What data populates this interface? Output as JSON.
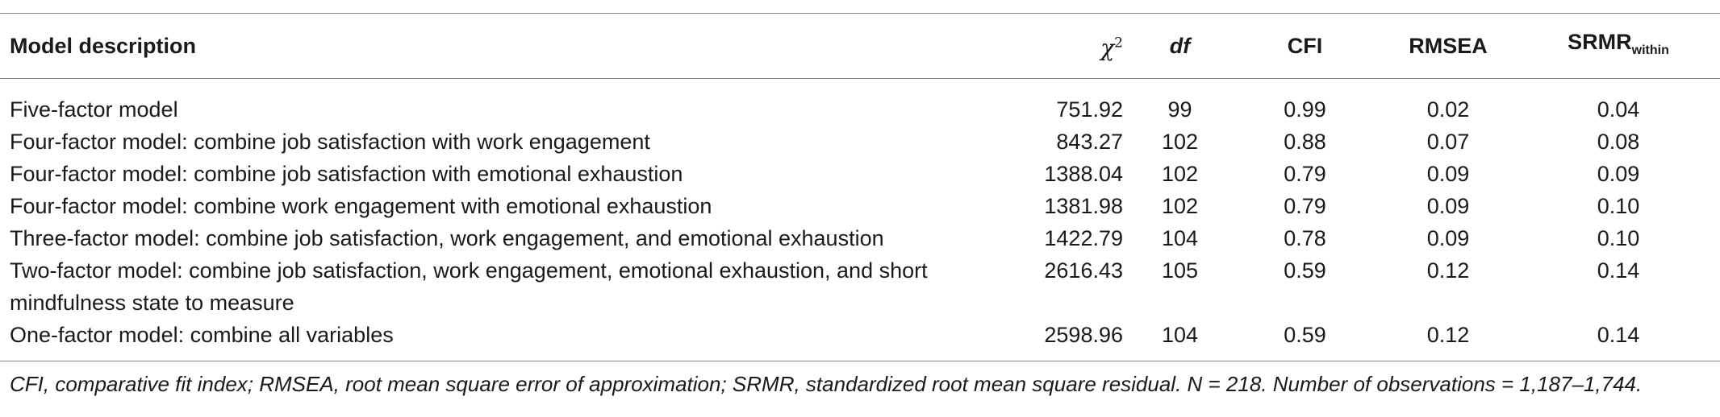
{
  "table": {
    "headers": {
      "model": "Model description",
      "chi_symbol": "χ",
      "chi_sup": "2",
      "df": "df",
      "cfi": "CFI",
      "rmsea": "RMSEA",
      "srmr_base": "SRMR",
      "srmr_sub": "within"
    },
    "rows": [
      {
        "model": "Five-factor model",
        "chi2": "751.92",
        "df": "99",
        "cfi": "0.99",
        "rmsea": "0.02",
        "srmr": "0.04"
      },
      {
        "model": "Four-factor model: combine job satisfaction with work engagement",
        "chi2": "843.27",
        "df": "102",
        "cfi": "0.88",
        "rmsea": "0.07",
        "srmr": "0.08"
      },
      {
        "model": "Four-factor model: combine job satisfaction with emotional exhaustion",
        "chi2": "1388.04",
        "df": "102",
        "cfi": "0.79",
        "rmsea": "0.09",
        "srmr": "0.09"
      },
      {
        "model": "Four-factor model: combine work engagement with emotional exhaustion",
        "chi2": "1381.98",
        "df": "102",
        "cfi": "0.79",
        "rmsea": "0.09",
        "srmr": "0.10"
      },
      {
        "model": "Three-factor model: combine job satisfaction, work engagement, and emotional exhaustion",
        "chi2": "1422.79",
        "df": "104",
        "cfi": "0.78",
        "rmsea": "0.09",
        "srmr": "0.10"
      },
      {
        "model": "Two-factor model: combine job satisfaction, work engagement, emotional exhaustion, and short mindfulness state to measure",
        "chi2": "2616.43",
        "df": "105",
        "cfi": "0.59",
        "rmsea": "0.12",
        "srmr": "0.14"
      },
      {
        "model": "One-factor model: combine all variables",
        "chi2": "2598.96",
        "df": "104",
        "cfi": "0.59",
        "rmsea": "0.12",
        "srmr": "0.14"
      }
    ],
    "footnote": "CFI, comparative fit index; RMSEA, root mean square error of approximation; SRMR, standardized root mean square residual. N = 218. Number of observations = 1,187–1,744."
  }
}
